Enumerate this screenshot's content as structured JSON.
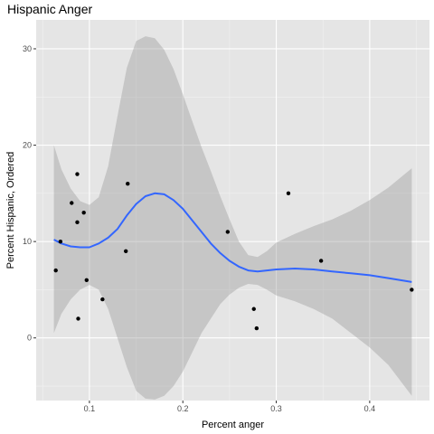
{
  "chart_data": {
    "type": "scatter",
    "title": "Hispanic Anger",
    "xlabel": "Percent anger",
    "ylabel": "Percent Hispanic, Ordered",
    "xlim": [
      0.043,
      0.464
    ],
    "ylim": [
      -6.5,
      33
    ],
    "x_ticks": [
      0.1,
      0.2,
      0.3,
      0.4
    ],
    "x_tick_labels": [
      "0.1",
      "0.2",
      "0.3",
      "0.4"
    ],
    "y_ticks": [
      0,
      10,
      20,
      30
    ],
    "y_tick_labels": [
      "0",
      "10",
      "20",
      "30"
    ],
    "grid": true,
    "colors": {
      "panel": "#e5e5e5",
      "grid_major": "#ffffff",
      "points": "#000000",
      "smooth_line": "#3366ff",
      "ribbon": "#999999"
    },
    "points": [
      {
        "x": 0.064,
        "y": 7
      },
      {
        "x": 0.069,
        "y": 10
      },
      {
        "x": 0.081,
        "y": 14
      },
      {
        "x": 0.087,
        "y": 17
      },
      {
        "x": 0.087,
        "y": 12
      },
      {
        "x": 0.088,
        "y": 2
      },
      {
        "x": 0.094,
        "y": 13
      },
      {
        "x": 0.097,
        "y": 6
      },
      {
        "x": 0.114,
        "y": 4
      },
      {
        "x": 0.139,
        "y": 9
      },
      {
        "x": 0.141,
        "y": 16
      },
      {
        "x": 0.248,
        "y": 11
      },
      {
        "x": 0.276,
        "y": 3
      },
      {
        "x": 0.279,
        "y": 1
      },
      {
        "x": 0.313,
        "y": 15
      },
      {
        "x": 0.348,
        "y": 8
      },
      {
        "x": 0.445,
        "y": 5
      }
    ],
    "smooth": {
      "method": "loess",
      "x": [
        0.062,
        0.07,
        0.08,
        0.09,
        0.1,
        0.11,
        0.12,
        0.13,
        0.14,
        0.15,
        0.16,
        0.17,
        0.18,
        0.19,
        0.2,
        0.21,
        0.22,
        0.23,
        0.24,
        0.25,
        0.26,
        0.27,
        0.28,
        0.29,
        0.3,
        0.32,
        0.34,
        0.36,
        0.38,
        0.4,
        0.42,
        0.445
      ],
      "y": [
        10.2,
        9.8,
        9.5,
        9.4,
        9.4,
        9.8,
        10.4,
        11.3,
        12.7,
        13.9,
        14.7,
        15.0,
        14.9,
        14.3,
        13.4,
        12.2,
        11.0,
        9.8,
        8.8,
        8.0,
        7.4,
        7.0,
        6.9,
        7.0,
        7.1,
        7.2,
        7.1,
        6.9,
        6.7,
        6.5,
        6.2,
        5.8
      ],
      "lower": [
        0.5,
        2.5,
        4.0,
        5.0,
        5.5,
        5.0,
        3.0,
        0.0,
        -3.0,
        -5.5,
        -6.3,
        -6.4,
        -6.0,
        -5.0,
        -3.5,
        -1.5,
        0.5,
        2.0,
        3.5,
        4.5,
        5.2,
        5.6,
        5.5,
        5.0,
        4.4,
        3.8,
        3.0,
        2.0,
        0.5,
        -1.0,
        -2.8,
        -6.0
      ],
      "upper": [
        20.0,
        17.5,
        15.5,
        14.2,
        13.8,
        14.6,
        17.8,
        23.0,
        28.0,
        30.8,
        31.3,
        31.1,
        29.9,
        27.9,
        25.3,
        22.5,
        19.8,
        17.3,
        14.7,
        12.3,
        10.0,
        8.6,
        8.4,
        9.0,
        9.9,
        10.8,
        11.6,
        12.3,
        13.2,
        14.3,
        15.6,
        17.6
      ]
    }
  }
}
